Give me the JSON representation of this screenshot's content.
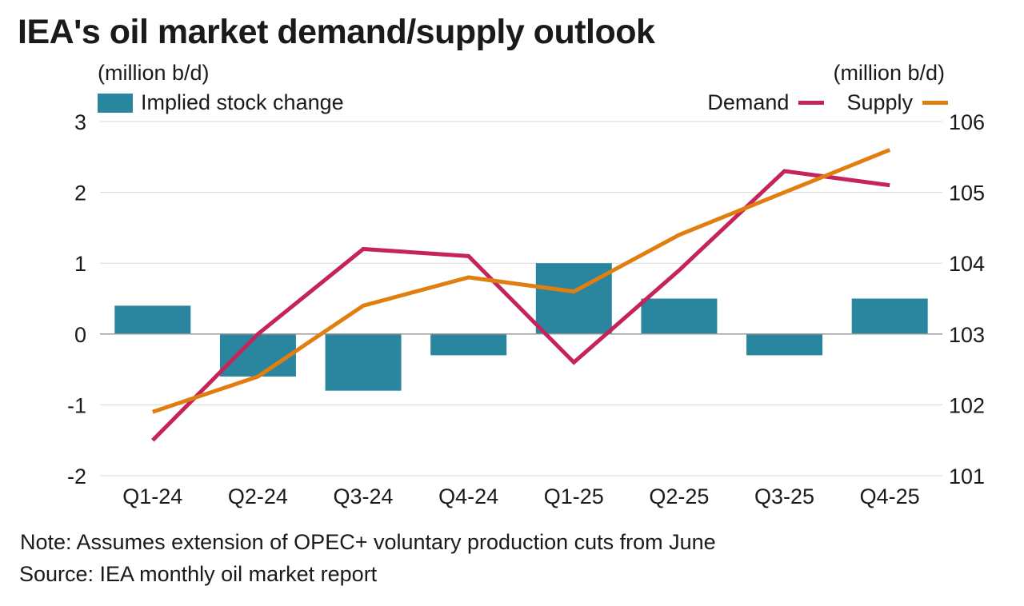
{
  "title": "IEA's oil market demand/supply outlook",
  "left_unit": "(million b/d)",
  "right_unit": "(million b/d)",
  "note": "Note: Assumes extension of OPEC+ voluntary production cuts from June",
  "source": "Source: IEA monthly oil market report",
  "colors": {
    "bar": "#2a869f",
    "demand": "#c4235b",
    "supply": "#e07e10",
    "grid": "#d9d9d9",
    "baseline": "#9a9a9a",
    "text": "#1a1a1a"
  },
  "chart_data": {
    "type": "bar+line",
    "categories": [
      "Q1-24",
      "Q2-24",
      "Q3-24",
      "Q4-24",
      "Q1-25",
      "Q2-25",
      "Q3-25",
      "Q4-25"
    ],
    "left_axis": {
      "label": "(million b/d)",
      "ylim": [
        -2,
        3
      ],
      "ticks": [
        "3",
        "2",
        "1",
        "0",
        "-1",
        "-2"
      ]
    },
    "right_axis": {
      "label": "(million b/d)",
      "ylim": [
        101,
        106
      ],
      "ticks": [
        "106",
        "105",
        "104",
        "103",
        "102",
        "101"
      ]
    },
    "bar_series": {
      "name": "Implied stock change",
      "axis": "left",
      "values": [
        0.4,
        -0.6,
        -0.8,
        -0.3,
        1.0,
        0.5,
        -0.3,
        0.5
      ]
    },
    "line_series": [
      {
        "name": "Demand",
        "axis": "right",
        "values": [
          101.5,
          103.0,
          104.2,
          104.1,
          102.6,
          103.9,
          105.3,
          105.1
        ]
      },
      {
        "name": "Supply",
        "axis": "right",
        "values": [
          101.9,
          102.4,
          103.4,
          103.8,
          103.6,
          104.4,
          105.0,
          105.6
        ]
      }
    ],
    "grid": true,
    "legend": "top"
  }
}
